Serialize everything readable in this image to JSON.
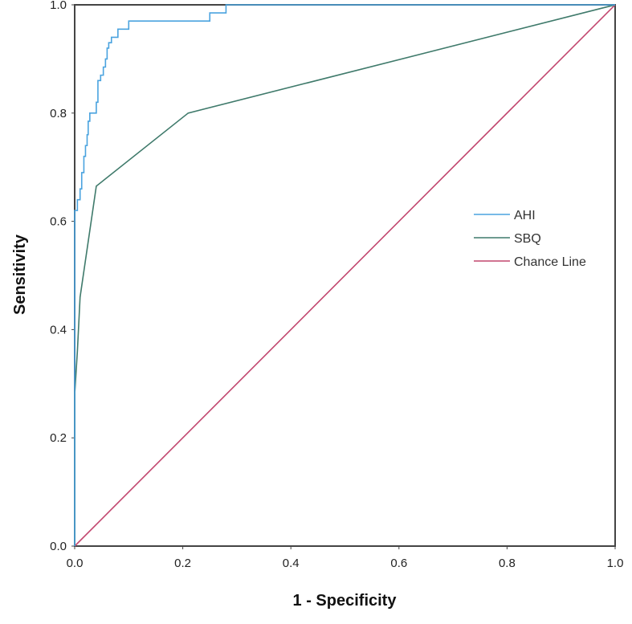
{
  "chart_data": {
    "type": "line",
    "title": "",
    "xlabel": "1 - Specificity",
    "ylabel": "Sensitivity",
    "xlim": [
      0,
      1
    ],
    "ylim": [
      0,
      1
    ],
    "xticks": [
      "0.0",
      "0.2",
      "0.4",
      "0.6",
      "0.8",
      "1.0"
    ],
    "yticks": [
      "0.0",
      "0.2",
      "0.4",
      "0.6",
      "0.8",
      "1.0"
    ],
    "grid": false,
    "legend_position": "center-right",
    "series": [
      {
        "name": "AHI",
        "color": "#4aa3df",
        "points": [
          [
            0.0,
            0.0
          ],
          [
            0.0,
            0.62
          ],
          [
            0.005,
            0.62
          ],
          [
            0.005,
            0.64
          ],
          [
            0.01,
            0.64
          ],
          [
            0.01,
            0.66
          ],
          [
            0.013,
            0.66
          ],
          [
            0.013,
            0.69
          ],
          [
            0.017,
            0.69
          ],
          [
            0.017,
            0.72
          ],
          [
            0.02,
            0.72
          ],
          [
            0.02,
            0.74
          ],
          [
            0.023,
            0.74
          ],
          [
            0.023,
            0.76
          ],
          [
            0.025,
            0.76
          ],
          [
            0.025,
            0.785
          ],
          [
            0.028,
            0.785
          ],
          [
            0.028,
            0.8
          ],
          [
            0.04,
            0.8
          ],
          [
            0.04,
            0.82
          ],
          [
            0.043,
            0.82
          ],
          [
            0.043,
            0.86
          ],
          [
            0.048,
            0.86
          ],
          [
            0.048,
            0.87
          ],
          [
            0.053,
            0.87
          ],
          [
            0.053,
            0.885
          ],
          [
            0.057,
            0.885
          ],
          [
            0.057,
            0.9
          ],
          [
            0.06,
            0.9
          ],
          [
            0.06,
            0.92
          ],
          [
            0.063,
            0.92
          ],
          [
            0.063,
            0.93
          ],
          [
            0.068,
            0.93
          ],
          [
            0.068,
            0.94
          ],
          [
            0.08,
            0.94
          ],
          [
            0.08,
            0.955
          ],
          [
            0.1,
            0.955
          ],
          [
            0.1,
            0.97
          ],
          [
            0.25,
            0.97
          ],
          [
            0.25,
            0.985
          ],
          [
            0.28,
            0.985
          ],
          [
            0.28,
            1.0
          ],
          [
            1.0,
            1.0
          ]
        ]
      },
      {
        "name": "SBQ",
        "color": "#3f7a6b",
        "points": [
          [
            0.0,
            0.0
          ],
          [
            0.0,
            0.28
          ],
          [
            0.005,
            0.36
          ],
          [
            0.01,
            0.46
          ],
          [
            0.04,
            0.665
          ],
          [
            0.21,
            0.8
          ],
          [
            1.0,
            1.0
          ]
        ]
      },
      {
        "name": "Chance Line",
        "color": "#c2476f",
        "points": [
          [
            0.0,
            0.0
          ],
          [
            1.0,
            1.0
          ]
        ]
      }
    ]
  }
}
